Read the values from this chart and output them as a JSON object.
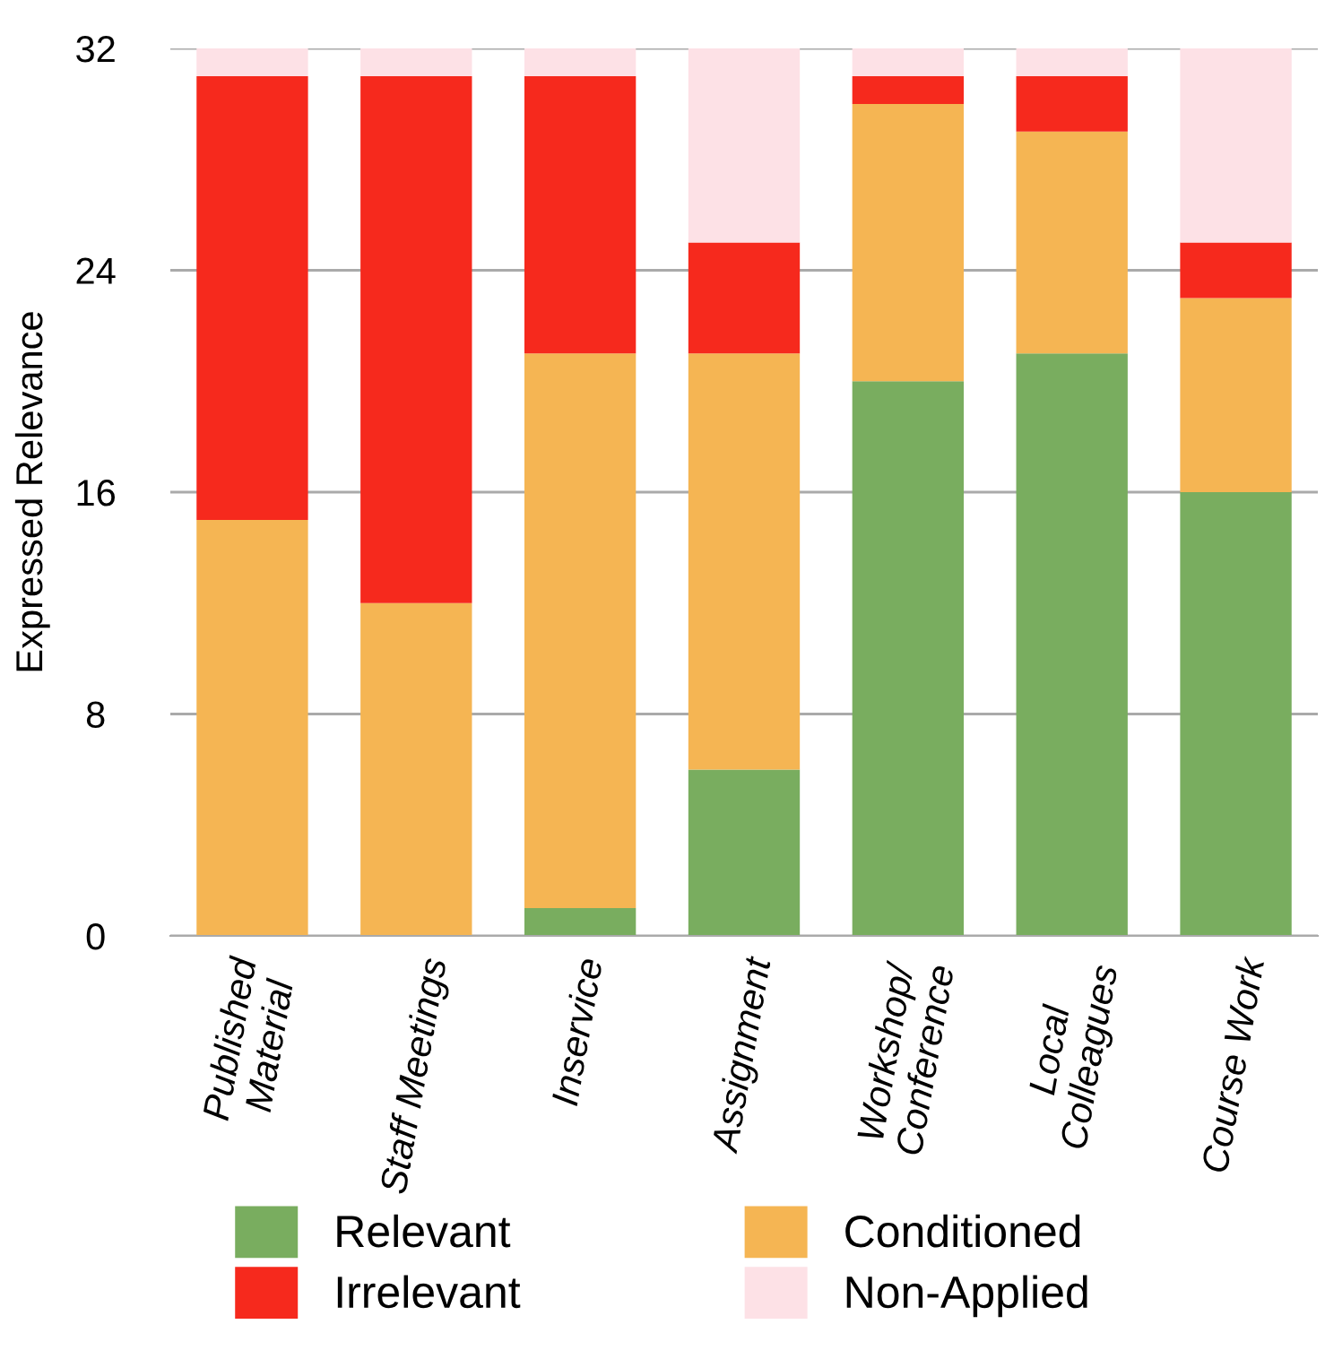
{
  "chart_data": {
    "type": "bar",
    "stacked": true,
    "ylabel": "Expressed Relevance",
    "categories": [
      "Published\nMaterial",
      "Staff Meetings",
      "Inservice",
      "Assignment",
      "Workshop/\nConference",
      "Local\nColleagues",
      "Course Work"
    ],
    "series": [
      {
        "name": "Relevant",
        "color": "#79ad5f",
        "values": [
          0,
          0,
          1,
          6,
          20,
          21,
          16
        ]
      },
      {
        "name": "Conditioned",
        "color": "#f5b553",
        "values": [
          15,
          12,
          20,
          15,
          10,
          8,
          7
        ]
      },
      {
        "name": "Irrelevant",
        "color": "#f6291d",
        "values": [
          16,
          19,
          10,
          4,
          1,
          2,
          2
        ]
      },
      {
        "name": "Non-Applied",
        "color": "#fde1e6",
        "values": [
          1,
          1,
          1,
          7,
          1,
          1,
          7
        ]
      }
    ],
    "ylim": [
      0,
      32
    ],
    "yticks": [
      0,
      8,
      16,
      24,
      32
    ],
    "grid": "y",
    "legend": "bottom"
  }
}
